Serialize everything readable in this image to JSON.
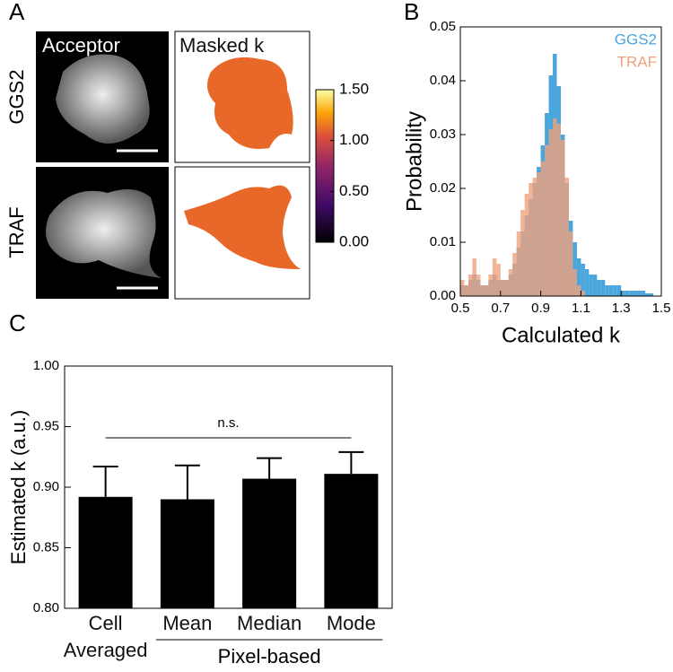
{
  "panel_labels": [
    "A",
    "B",
    "C"
  ],
  "panel_a": {
    "column_labels": [
      "Acceptor",
      "Masked k"
    ],
    "row_labels": [
      "GGS2",
      "TRAF"
    ],
    "colorbar": {
      "lim": [
        0,
        1.5
      ],
      "ticks": [
        {
          "value": 0,
          "label": "0.00"
        },
        {
          "value": 0.5,
          "label": "0.50"
        },
        {
          "value": 1,
          "label": "1.00"
        },
        {
          "value": 1.5,
          "label": "1.50"
        }
      ]
    }
  },
  "chart_data": [
    {
      "type": "histogram",
      "xlabel": "Calculated k",
      "ylabel": "Probability",
      "xlim": [
        0.5,
        1.5
      ],
      "ylim": [
        0,
        0.05
      ],
      "xticks": [
        0.5,
        0.7,
        0.9,
        1.1,
        1.3,
        1.5
      ],
      "yticks": [
        {
          "value": 0,
          "label": "0.00"
        },
        {
          "value": 0.01,
          "label": "0.01"
        },
        {
          "value": 0.02,
          "label": "0.02"
        },
        {
          "value": 0.03,
          "label": "0.03"
        },
        {
          "value": 0.04,
          "label": "0.04"
        },
        {
          "value": 0.05,
          "label": "0.05"
        }
      ],
      "bins": [
        0.5,
        0.52,
        0.54,
        0.56,
        0.58,
        0.6,
        0.62,
        0.64,
        0.66,
        0.68,
        0.7,
        0.72,
        0.74,
        0.76,
        0.78,
        0.8,
        0.82,
        0.84,
        0.86,
        0.88,
        0.9,
        0.92,
        0.94,
        0.96,
        0.98,
        1.0,
        1.02,
        1.04,
        1.06,
        1.08,
        1.1,
        1.12,
        1.14,
        1.16,
        1.18,
        1.2,
        1.22,
        1.24,
        1.26,
        1.28,
        1.3,
        1.32,
        1.34,
        1.36,
        1.38,
        1.4,
        1.42,
        1.44,
        1.46,
        1.48,
        1.5
      ],
      "series": [
        {
          "name": "GGS2",
          "color": "#4aa6dc",
          "values": [
            0.002,
            0.002,
            0.003,
            0.004,
            0.003,
            0.002,
            0.002,
            0.003,
            0.004,
            0.003,
            0.003,
            0.003,
            0.004,
            0.006,
            0.009,
            0.012,
            0.015,
            0.018,
            0.021,
            0.024,
            0.028,
            0.034,
            0.041,
            0.045,
            0.039,
            0.03,
            0.021,
            0.014,
            0.01,
            0.007,
            0.006,
            0.005,
            0.004,
            0.004,
            0.003,
            0.003,
            0.002,
            0.002,
            0.002,
            0.002,
            0.001,
            0.001,
            0.001,
            0.001,
            0.001,
            0.001,
            0.0005,
            0.0005,
            0,
            0
          ]
        },
        {
          "name": "TRAF",
          "color": "#f0a07c",
          "values": [
            0.003,
            0.002,
            0.004,
            0.007,
            0.004,
            0.002,
            0.002,
            0.004,
            0.007,
            0.006,
            0.003,
            0.003,
            0.005,
            0.008,
            0.012,
            0.016,
            0.019,
            0.021,
            0.022,
            0.023,
            0.025,
            0.028,
            0.031,
            0.033,
            0.032,
            0.029,
            0.022,
            0.012,
            0.005,
            0.002,
            0.001,
            0,
            0,
            0,
            0,
            0,
            0,
            0,
            0,
            0,
            0,
            0,
            0,
            0,
            0,
            0,
            0,
            0,
            0,
            0
          ]
        }
      ]
    },
    {
      "type": "bar",
      "ylabel": "Estimated k  (a.u.)",
      "categories": [
        "Cell Averaged",
        "Mean",
        "Median",
        "Mode"
      ],
      "values": [
        0.892,
        0.89,
        0.907,
        0.911
      ],
      "errors": [
        0.025,
        0.028,
        0.017,
        0.018
      ],
      "color": "#000000",
      "ylim": [
        0.8,
        1.0
      ],
      "yticks": [
        {
          "value": 0.8,
          "label": "0.80"
        },
        {
          "value": 0.85,
          "label": "0.85"
        },
        {
          "value": 0.9,
          "label": "0.90"
        },
        {
          "value": 0.95,
          "label": "0.95"
        },
        {
          "value": 1.0,
          "label": "1.00"
        }
      ],
      "annotation": "n.s.",
      "group_label": "Pixel-based"
    }
  ]
}
